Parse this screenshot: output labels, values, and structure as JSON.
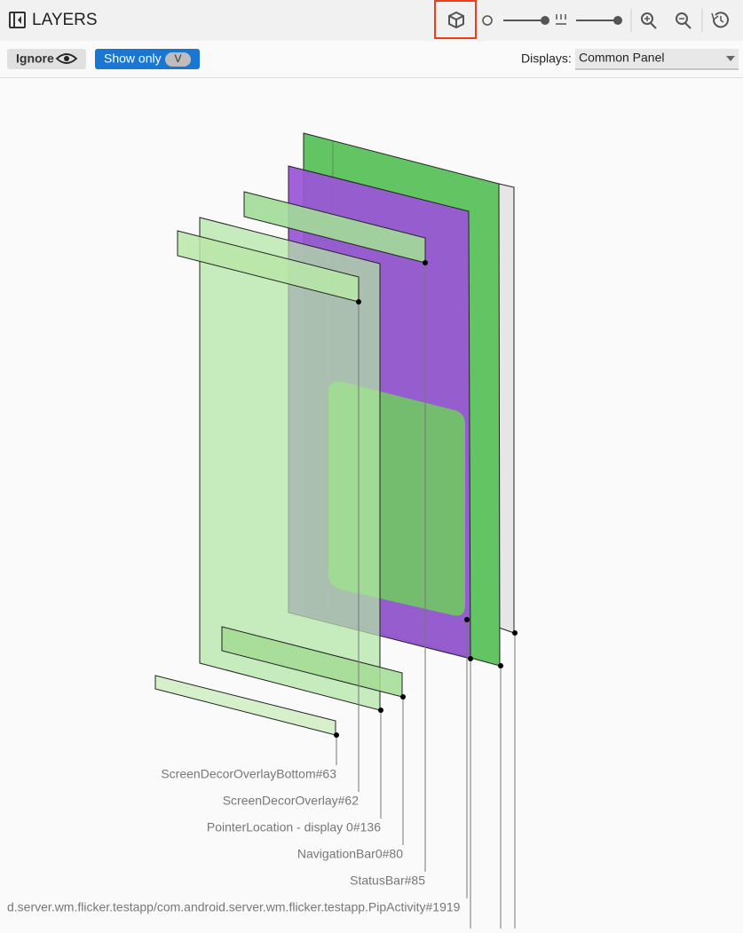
{
  "header": {
    "title": "LAYERS"
  },
  "toolbar": {
    "ignore": "Ignore",
    "show_only": "Show only",
    "show_only_key": "V",
    "displays_label": "Displays:",
    "displays_value": "Common Panel"
  },
  "layers": {
    "labels": [
      "ScreenDecorOverlayBottom#63",
      "ScreenDecorOverlay#62",
      "PointerLocation - display 0#136",
      "NavigationBar0#80",
      "StatusBar#85",
      "d.server.wm.flicker.testapp/com.android.server.wm.flicker.testapp.PipActivity#1919"
    ]
  }
}
